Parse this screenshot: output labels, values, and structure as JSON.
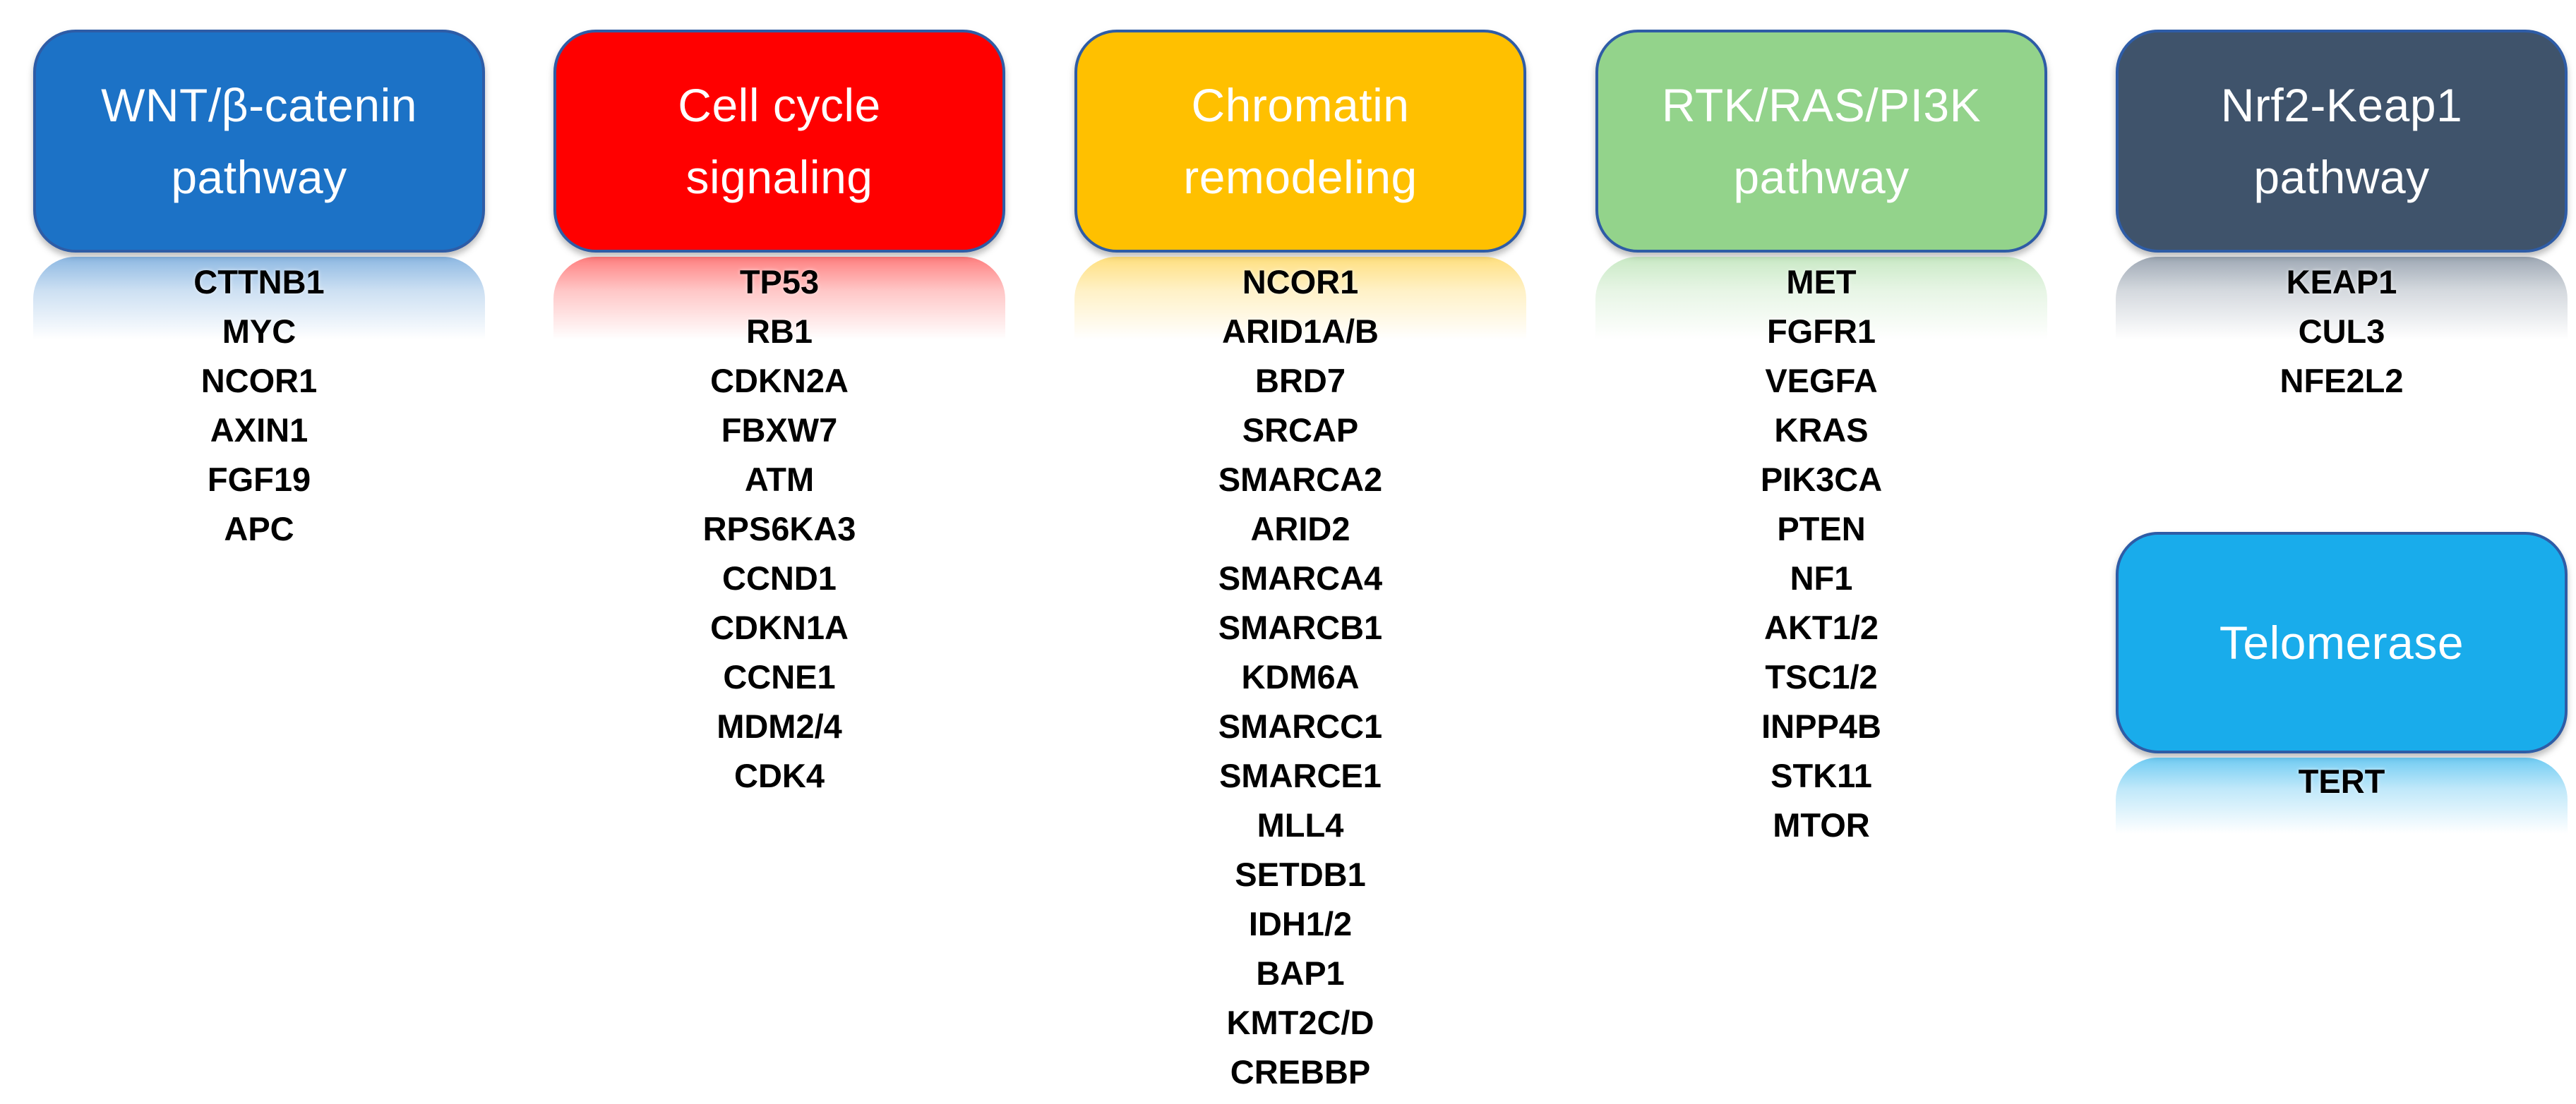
{
  "diagram": {
    "background_color": "#FFFFFF",
    "box_border_color": "#2E5CA6",
    "title_text_color": "#FFFFFF",
    "gene_text_color": "#000000",
    "columns": [
      {
        "title": "WNT/β-catenin pathway",
        "title_lines": [
          "WNT/β-catenin",
          "pathway"
        ],
        "color": "#1C72C6",
        "genes": [
          "CTTNB1",
          "MYC",
          "NCOR1",
          "AXIN1",
          "FGF19",
          "APC"
        ]
      },
      {
        "title": "Cell cycle signaling",
        "title_lines": [
          "Cell cycle",
          "signaling"
        ],
        "color": "#FF0000",
        "genes": [
          "TP53",
          "RB1",
          "CDKN2A",
          "FBXW7",
          "ATM",
          "RPS6KA3",
          "CCND1",
          "CDKN1A",
          "CCNE1",
          "MDM2/4",
          "CDK4"
        ]
      },
      {
        "title": "Chromatin remodeling",
        "title_lines": [
          "Chromatin",
          "remodeling"
        ],
        "color": "#FFC000",
        "genes": [
          "NCOR1",
          "ARID1A/B",
          "BRD7",
          "SRCAP",
          "SMARCA2",
          "ARID2",
          "SMARCA4",
          "SMARCB1",
          "KDM6A",
          "SMARCC1",
          "SMARCE1",
          "MLL4",
          "SETDB1",
          "IDH1/2",
          "BAP1",
          "KMT2C/D",
          "CREBBP"
        ]
      },
      {
        "title": "RTK/RAS/PI3K pathway",
        "title_lines": [
          "RTK/RAS/PI3K",
          "pathway"
        ],
        "color": "#93D38B",
        "genes": [
          "MET",
          "FGFR1",
          "VEGFA",
          "KRAS",
          "PIK3CA",
          "PTEN",
          "NF1",
          "AKT1/2",
          "TSC1/2",
          "INPP4B",
          "STK11",
          "MTOR"
        ]
      },
      {
        "title": "Nrf2-Keap1 pathway",
        "title_lines": [
          "Nrf2-Keap1",
          "pathway"
        ],
        "color": "#3F536B",
        "genes": [
          "KEAP1",
          "CUL3",
          "NFE2L2"
        ],
        "sub_box": {
          "title": "Telomerase",
          "title_lines": [
            "Telomerase"
          ],
          "color": "#19ACEB",
          "genes": [
            "TERT"
          ]
        }
      }
    ]
  }
}
